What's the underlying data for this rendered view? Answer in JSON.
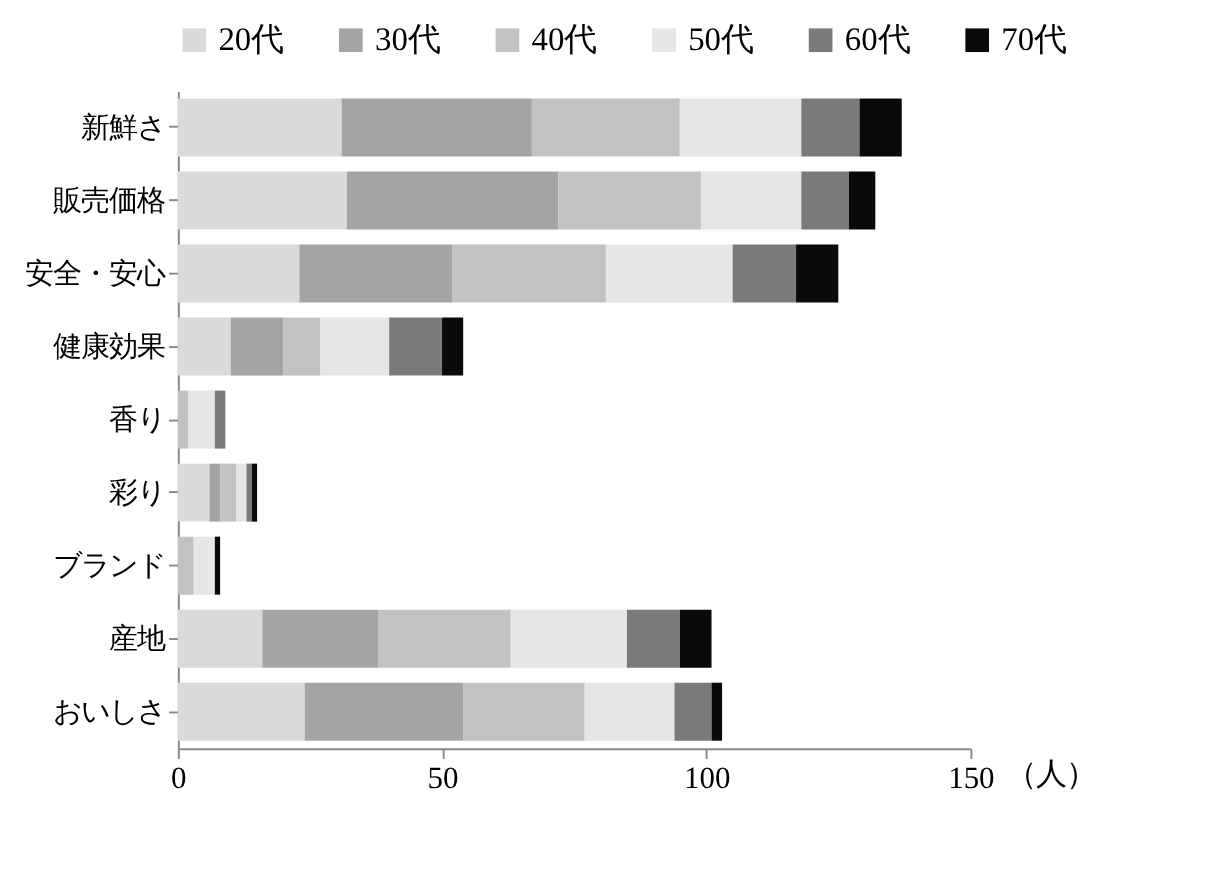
{
  "chart_data": {
    "type": "bar",
    "orientation": "horizontal",
    "stacked": true,
    "xlabel": "（人）",
    "categories": [
      "新鮮さ",
      "販売価格",
      "安全・安心",
      "健康効果",
      "香り",
      "彩り",
      "ブランド",
      "産地",
      "おいしさ"
    ],
    "series": [
      {
        "name": "20代",
        "color": "#dadada",
        "values": [
          31,
          32,
          23,
          10,
          0,
          6,
          0,
          16,
          24
        ]
      },
      {
        "name": "30代",
        "color": "#a4a4a4",
        "values": [
          36,
          40,
          29,
          10,
          0,
          2,
          0,
          22,
          30
        ]
      },
      {
        "name": "40代",
        "color": "#c2c2c2",
        "values": [
          28,
          27,
          29,
          7,
          2,
          3,
          3,
          25,
          23
        ]
      },
      {
        "name": "50代",
        "color": "#e6e6e6",
        "values": [
          23,
          19,
          24,
          13,
          5,
          2,
          4,
          22,
          17
        ]
      },
      {
        "name": "60代",
        "color": "#7a7a7a",
        "values": [
          11,
          9,
          12,
          10,
          2,
          1,
          0,
          10,
          7
        ]
      },
      {
        "name": "70代",
        "color": "#0a0a0a",
        "values": [
          8,
          5,
          8,
          4,
          0,
          1,
          1,
          6,
          2
        ]
      }
    ],
    "xlim": [
      0,
      150
    ],
    "xticks": [
      0,
      50,
      100,
      150
    ],
    "grid": false,
    "legend": "top"
  }
}
